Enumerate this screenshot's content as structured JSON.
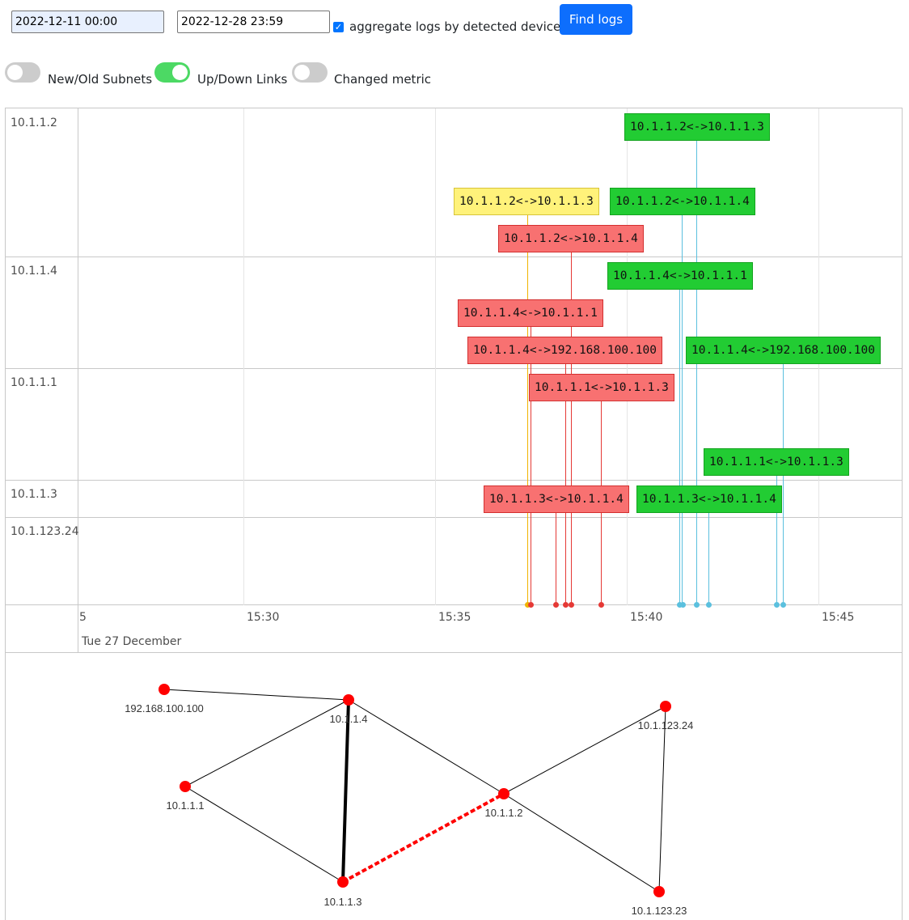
{
  "controls": {
    "date_from": "2022-12-11 00:00",
    "date_to": "2022-12-28 23:59",
    "aggregate_label": "aggregate logs by detected device",
    "aggregate_checked": true,
    "find_button": "Find logs",
    "toggles": [
      {
        "label": "New/Old Subnets",
        "on": false
      },
      {
        "label": "Up/Down Links",
        "on": true
      },
      {
        "label": "Changed metric",
        "on": false
      }
    ]
  },
  "timeline": {
    "groups": [
      "10.1.1.2",
      "10.1.1.4",
      "10.1.1.1",
      "10.1.1.3",
      "10.1.123.24"
    ],
    "axis_ticks": [
      "5",
      "15:30",
      "15:35",
      "15:40",
      "15:45"
    ],
    "date_label": "Tue 27 December",
    "event_colors": {
      "down": "#f87171",
      "up": "#22cc33",
      "metric": "#fff27a"
    },
    "events": [
      {
        "text": "10.1.1.2<->10.1.1.3",
        "kind": "up",
        "group": "10.1.1.2"
      },
      {
        "text": "10.1.1.2<->10.1.1.3",
        "kind": "metric",
        "group": "10.1.1.2"
      },
      {
        "text": "10.1.1.2<->10.1.1.4",
        "kind": "up",
        "group": "10.1.1.2"
      },
      {
        "text": "10.1.1.2<->10.1.1.4",
        "kind": "down",
        "group": "10.1.1.2"
      },
      {
        "text": "10.1.1.4<->10.1.1.1",
        "kind": "up",
        "group": "10.1.1.4"
      },
      {
        "text": "10.1.1.4<->10.1.1.1",
        "kind": "down",
        "group": "10.1.1.4"
      },
      {
        "text": "10.1.1.4<->192.168.100.100",
        "kind": "down",
        "group": "10.1.1.4"
      },
      {
        "text": "10.1.1.4<->192.168.100.100",
        "kind": "up",
        "group": "10.1.1.4"
      },
      {
        "text": "10.1.1.1<->10.1.1.3",
        "kind": "down",
        "group": "10.1.1.1"
      },
      {
        "text": "10.1.1.1<->10.1.1.3",
        "kind": "up",
        "group": "10.1.1.1"
      },
      {
        "text": "10.1.1.3<->10.1.1.4",
        "kind": "down",
        "group": "10.1.1.3"
      },
      {
        "text": "10.1.1.3<->10.1.1.4",
        "kind": "up",
        "group": "10.1.1.3"
      }
    ]
  },
  "graph": {
    "nodes": [
      "192.168.100.100",
      "10.1.1.4",
      "10.1.1.1",
      "10.1.1.2",
      "10.1.1.3",
      "10.1.123.24",
      "10.1.123.23"
    ],
    "node_color": "#ff0000",
    "links": [
      {
        "a": "192.168.100.100",
        "b": "10.1.1.4",
        "style": "normal"
      },
      {
        "a": "10.1.1.4",
        "b": "10.1.1.1",
        "style": "normal"
      },
      {
        "a": "10.1.1.4",
        "b": "10.1.1.3",
        "style": "bold"
      },
      {
        "a": "10.1.1.4",
        "b": "10.1.1.2",
        "style": "normal"
      },
      {
        "a": "10.1.1.1",
        "b": "10.1.1.3",
        "style": "normal"
      },
      {
        "a": "10.1.1.3",
        "b": "10.1.1.2",
        "style": "dashed-red"
      },
      {
        "a": "10.1.1.2",
        "b": "10.1.123.24",
        "style": "normal"
      },
      {
        "a": "10.1.1.2",
        "b": "10.1.123.23",
        "style": "normal"
      },
      {
        "a": "10.1.123.24",
        "b": "10.1.123.23",
        "style": "normal"
      }
    ]
  }
}
